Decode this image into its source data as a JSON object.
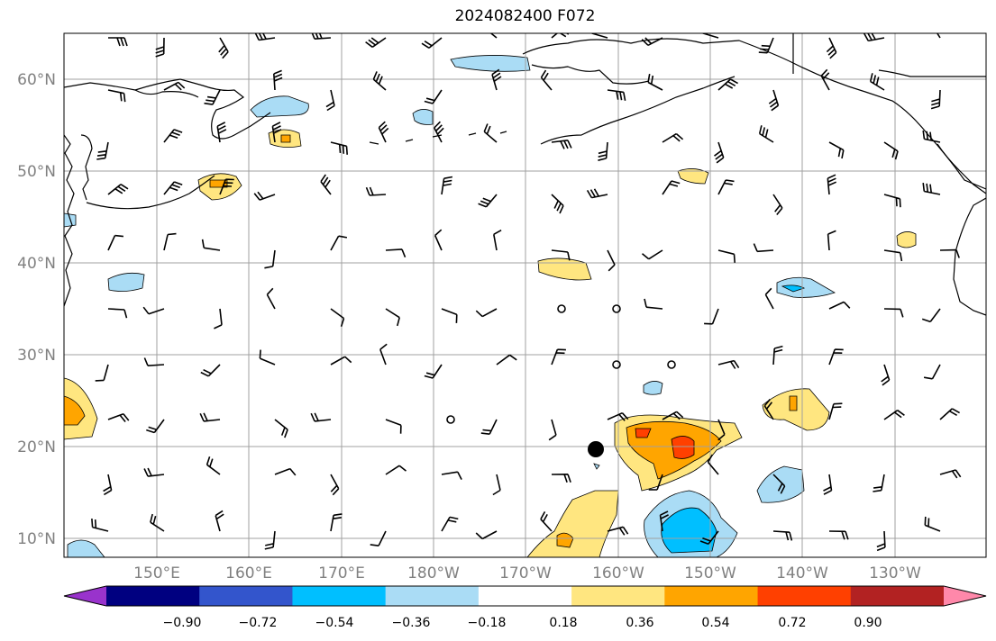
{
  "title": "2024082400 F072",
  "map": {
    "lat_labels": [
      "10°N",
      "20°N",
      "30°N",
      "40°N",
      "50°N",
      "60°N"
    ],
    "lon_labels": [
      "150°E",
      "160°E",
      "170°E",
      "180°W",
      "170°W",
      "160°W",
      "150°W",
      "140°W",
      "130°W"
    ],
    "center_marker": {
      "lat": 19.7,
      "lon": -162.0
    }
  },
  "colorbar": {
    "colors": [
      "#9933cc",
      "#000080",
      "#3355cc",
      "#00bfff",
      "#aadcf5",
      "#ffffff",
      "#ffe680",
      "#ffa500",
      "#ff4000",
      "#b22222",
      "#ff88aa"
    ],
    "tick_labels": [
      "−0.90",
      "−0.72",
      "−0.54",
      "−0.36",
      "−0.18",
      "0.18",
      "0.36",
      "0.54",
      "0.72",
      "0.90"
    ]
  }
}
